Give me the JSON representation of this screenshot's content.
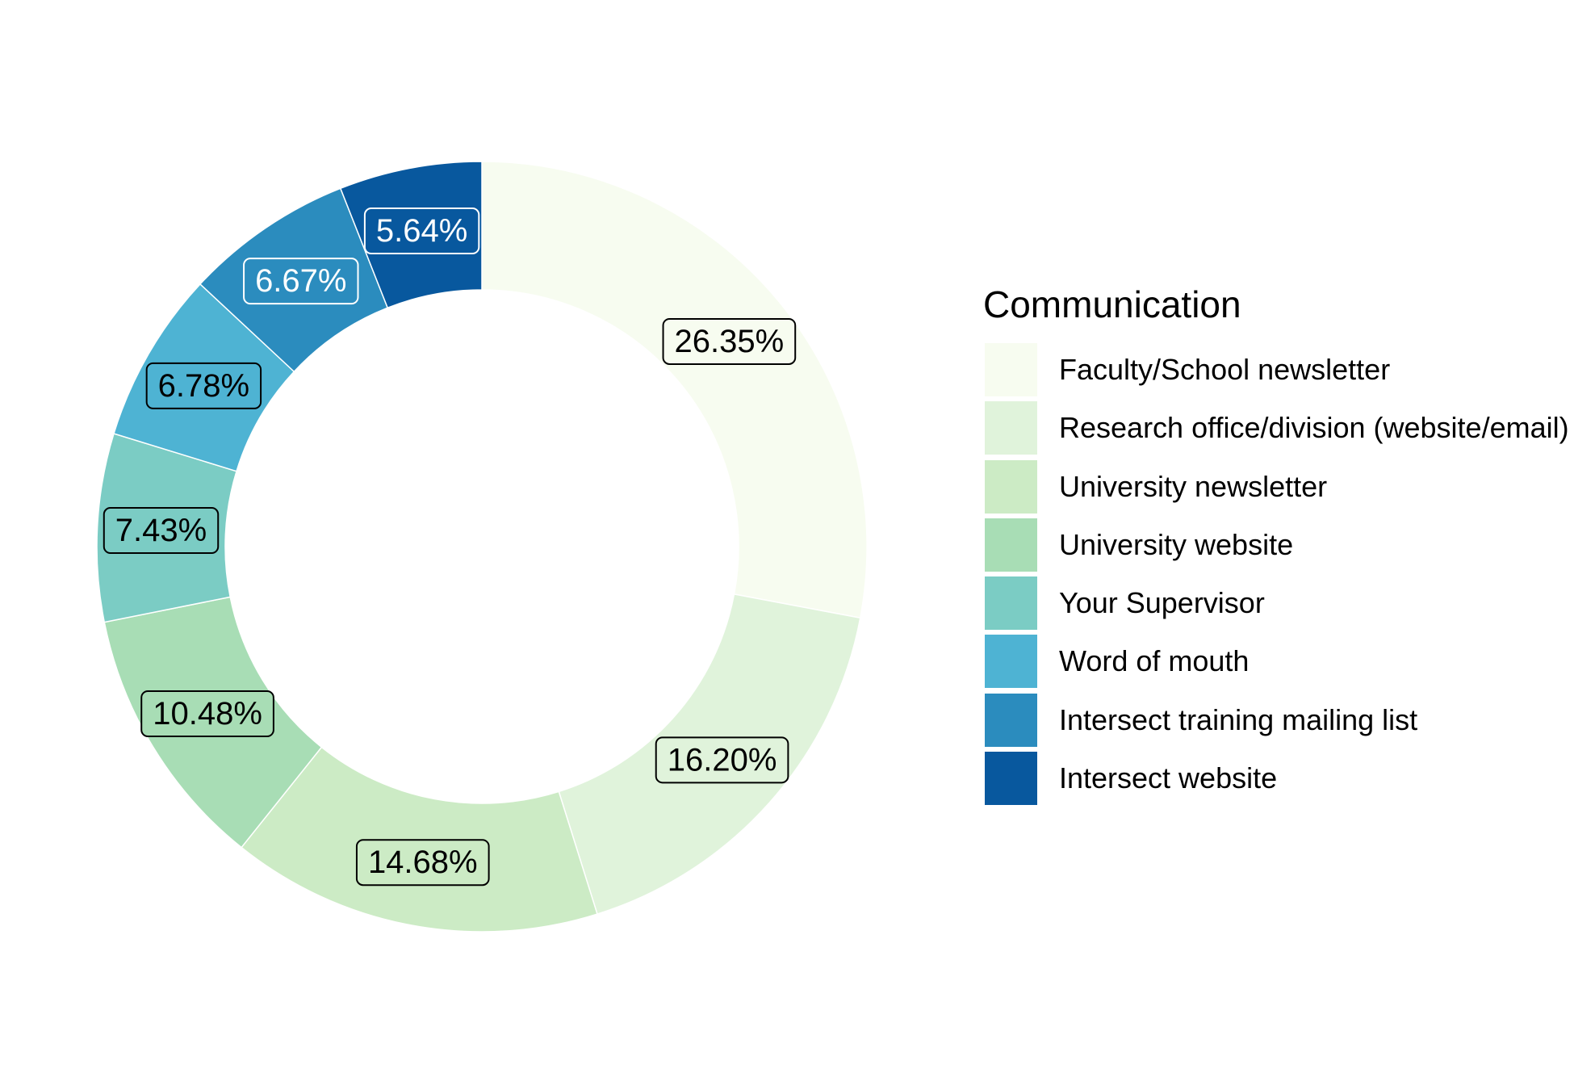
{
  "chart_data": {
    "type": "pie",
    "style": "donut",
    "legend_title": "Communication",
    "legend_position": "right",
    "categories": [
      "Faculty/School newsletter",
      "Research office/division (website/email)",
      "University newsletter",
      "University website",
      "Your Supervisor",
      "Word of mouth",
      "Intersect training mailing list",
      "Intersect website"
    ],
    "values": [
      26.35,
      16.2,
      14.68,
      10.48,
      7.43,
      6.78,
      6.67,
      5.64
    ],
    "labels": [
      "26.35%",
      "16.20%",
      "14.68%",
      "10.48%",
      "7.43%",
      "6.78%",
      "6.67%",
      "5.64%"
    ],
    "colors": [
      "#F7FCF0",
      "#E0F3DB",
      "#CCEBC5",
      "#A8DDB5",
      "#7BCCC4",
      "#4EB3D3",
      "#2B8CBE",
      "#08589E"
    ],
    "label_text_colors": [
      "#000000",
      "#000000",
      "#000000",
      "#000000",
      "#000000",
      "#000000",
      "#ffffff",
      "#ffffff"
    ]
  }
}
